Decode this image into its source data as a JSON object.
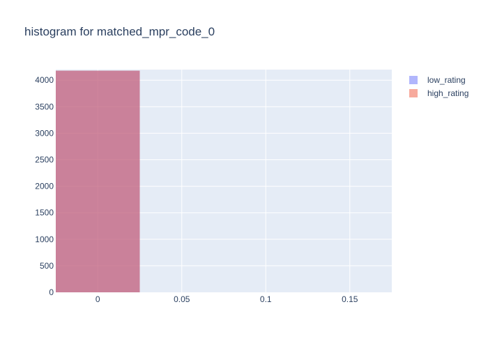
{
  "chart_data": {
    "type": "bar",
    "title": "histogram for matched_mpr_code_0",
    "xlabel": "",
    "ylabel": "",
    "xlim": [
      -0.025,
      0.175
    ],
    "ylim": [
      0,
      4200
    ],
    "x_ticks": [
      0,
      0.05,
      0.1,
      0.15
    ],
    "x_tick_labels": [
      "0",
      "0.05",
      "0.1",
      "0.15"
    ],
    "y_ticks": [
      0,
      500,
      1000,
      1500,
      2000,
      2500,
      3000,
      3500,
      4000
    ],
    "y_tick_labels": [
      "0",
      "500",
      "1000",
      "1500",
      "2000",
      "2500",
      "3000",
      "3500",
      "4000"
    ],
    "grid": true,
    "barmode": "overlay",
    "bin_width": 0.05,
    "legend_position": "top-right",
    "series": [
      {
        "name": "low_rating",
        "color": "#636efa",
        "opacity": 0.5,
        "bins": [
          {
            "x0": -0.025,
            "x1": 0.025,
            "count": 4180
          }
        ]
      },
      {
        "name": "high_rating",
        "color": "#ef553b",
        "opacity": 0.5,
        "bins": [
          {
            "x0": -0.025,
            "x1": 0.025,
            "count": 4180
          }
        ]
      }
    ],
    "plot_background": "#e5ecf6",
    "grid_color": "#ffffff"
  }
}
